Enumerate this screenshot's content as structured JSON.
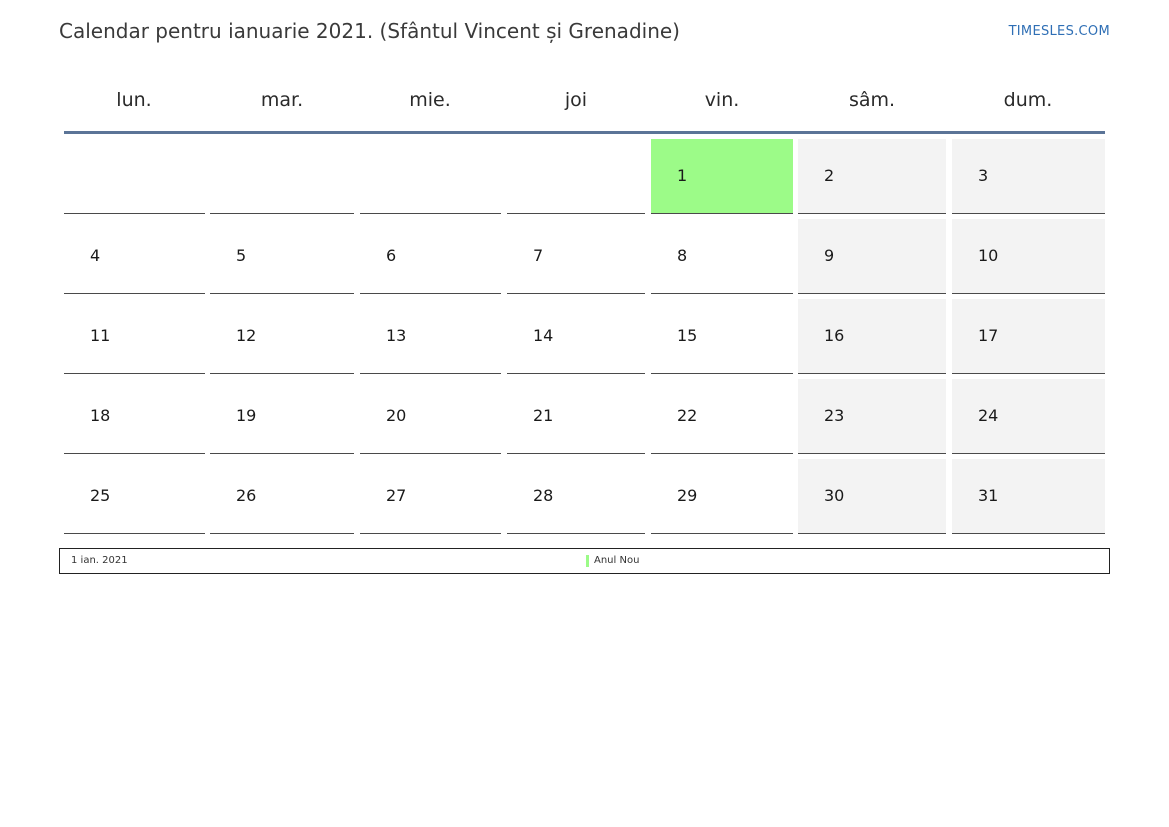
{
  "header": {
    "title": "Calendar pentru ianuarie 2021. (Sfântul Vincent și Grenadine)",
    "brand": "TIMESLES.COM"
  },
  "weekdays": [
    "lun.",
    "mar.",
    "mie.",
    "joi",
    "vin.",
    "sâm.",
    "dum."
  ],
  "weeks": [
    [
      "",
      "",
      "",
      "",
      "1",
      "2",
      "3"
    ],
    [
      "4",
      "5",
      "6",
      "7",
      "8",
      "9",
      "10"
    ],
    [
      "11",
      "12",
      "13",
      "14",
      "15",
      "16",
      "17"
    ],
    [
      "18",
      "19",
      "20",
      "21",
      "22",
      "23",
      "24"
    ],
    [
      "25",
      "26",
      "27",
      "28",
      "29",
      "30",
      "31"
    ]
  ],
  "highlighted_day": "1",
  "weekend_columns": [
    5,
    6
  ],
  "legend": {
    "date": "1 ian. 2021",
    "name": "Anul Nou"
  },
  "colors": {
    "holiday": "#9cfb88",
    "weekend": "#f3f3f3",
    "header_rule": "#5b7497",
    "brand": "#2f6fb5"
  }
}
